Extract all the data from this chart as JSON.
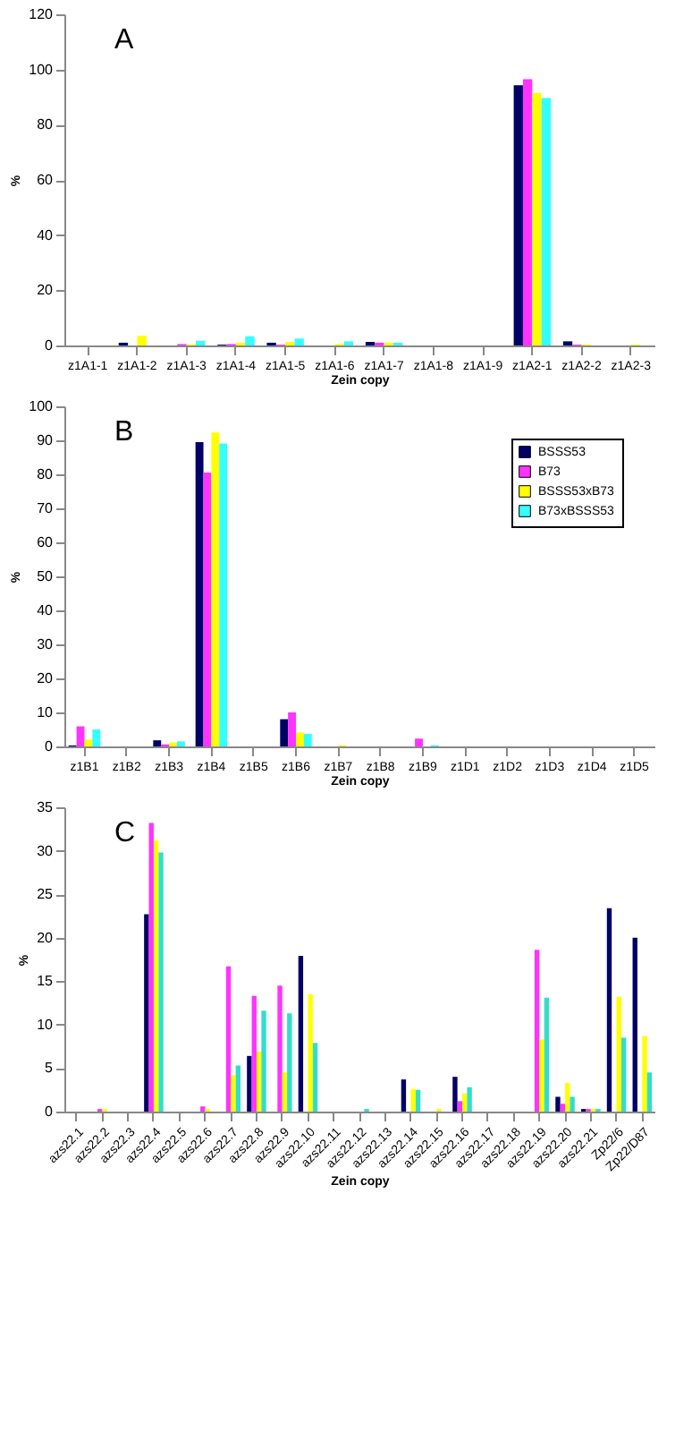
{
  "chart_data": [
    {
      "type": "bar",
      "xlabel": "Zein copy",
      "ylabel": "%",
      "annotations": [
        "A"
      ],
      "legend": false,
      "grid": false,
      "categories": [
        "z1A1-1",
        "z1A1-2",
        "z1A1-3",
        "z1A1-4",
        "z1A1-5",
        "z1A1-6",
        "z1A1-7",
        "z1A1-8",
        "z1A1-9",
        "z1A2-1",
        "z1A2-2",
        "z1A2-3"
      ],
      "ylim": [
        0,
        120
      ],
      "yticks": [
        0,
        20,
        40,
        60,
        80,
        100,
        120
      ],
      "series": [
        {
          "color": "#000066",
          "values": [
            0,
            1,
            0,
            0.3,
            1,
            0,
            1.3,
            0,
            0,
            94.3,
            1.5,
            0
          ]
        },
        {
          "color": "#ff33ff",
          "values": [
            0,
            0,
            0.5,
            0.5,
            0.3,
            0,
            1,
            0,
            0,
            96.5,
            0.3,
            0
          ]
        },
        {
          "color": "#ffff00",
          "values": [
            0,
            3.5,
            0.3,
            1,
            1.3,
            0.5,
            1,
            0,
            0,
            91.5,
            0.3,
            0.3
          ]
        },
        {
          "color": "#33ffff",
          "values": [
            0,
            0,
            1.7,
            3.3,
            2.5,
            1.5,
            1,
            0,
            0,
            89.7,
            0,
            0
          ]
        }
      ]
    },
    {
      "type": "bar",
      "xlabel": "Zein copy",
      "ylabel": "%",
      "annotations": [
        "B"
      ],
      "legend": "top right",
      "grid": false,
      "categories": [
        "z1B1",
        "z1B2",
        "z1B3",
        "z1B4",
        "z1B5",
        "z1B6",
        "z1B7",
        "z1B8",
        "z1B9",
        "z1D1",
        "z1D2",
        "z1D3",
        "z1D4",
        "z1D5"
      ],
      "ylim": [
        0,
        100
      ],
      "yticks": [
        0,
        10,
        20,
        30,
        40,
        50,
        60,
        70,
        80,
        90,
        100
      ],
      "series": [
        {
          "name": "BSSS53",
          "color": "#000066",
          "values": [
            0.3,
            0,
            1.8,
            89.5,
            0,
            8,
            0,
            0,
            0,
            0,
            0,
            0,
            0,
            0
          ]
        },
        {
          "name": "B73",
          "color": "#ff33ff",
          "values": [
            5.9,
            0,
            0.6,
            80.5,
            0,
            10,
            0,
            0,
            2.3,
            0,
            0,
            0,
            0,
            0
          ]
        },
        {
          "name": "BSSS53xB73",
          "color": "#ffff00",
          "values": [
            2,
            0,
            1.1,
            92.3,
            0,
            4.1,
            0.3,
            0,
            0,
            0,
            0,
            0,
            0,
            0
          ]
        },
        {
          "name": "B73xBSSS53",
          "color": "#33ffff",
          "values": [
            5,
            0,
            1.5,
            89.1,
            0,
            3.7,
            0,
            0,
            0.3,
            0,
            0,
            0,
            0,
            0
          ]
        }
      ]
    },
    {
      "type": "bar",
      "xlabel": "Zein copy",
      "ylabel": "%",
      "annotations": [
        "C"
      ],
      "legend": false,
      "grid": false,
      "categories": [
        "azs22.1",
        "azs22.2",
        "azs22.3",
        "azs22.4",
        "azs22.5",
        "azs22.6",
        "azs22.7",
        "azs22.8",
        "azs22.9",
        "azs22.10",
        "azs22.11",
        "azs22.12",
        "azs22.13",
        "azs22.14",
        "azs22.15",
        "azs22.16",
        "azs22.17",
        "azs22.18",
        "azs22.19",
        "azs22.20",
        "azs22.21",
        "Zp22/6",
        "Zp22/D87"
      ],
      "ylim": [
        0,
        35
      ],
      "yticks": [
        0,
        5,
        10,
        15,
        20,
        25,
        30,
        35
      ],
      "series": [
        {
          "color": "#000066",
          "values": [
            0,
            0,
            0,
            22.7,
            0,
            0,
            0,
            6.4,
            0,
            17.9,
            0,
            0,
            0,
            3.7,
            0,
            4,
            0,
            0,
            0,
            1.7,
            0.3,
            23.4,
            20
          ]
        },
        {
          "color": "#ff33ff",
          "values": [
            0,
            0.3,
            0,
            33.2,
            0,
            0.6,
            16.7,
            13.3,
            14.5,
            0,
            0,
            0,
            0,
            0,
            0,
            1.2,
            0,
            0,
            18.6,
            0.9,
            0.3,
            0,
            0
          ]
        },
        {
          "color": "#ffff00",
          "values": [
            0,
            0.3,
            0,
            31.2,
            0,
            0.3,
            4.2,
            6.9,
            4.5,
            13.5,
            0,
            0,
            0,
            2.6,
            0.3,
            2.1,
            0,
            0,
            8.3,
            3.3,
            0.3,
            13.2,
            8.7
          ]
        },
        {
          "color": "#33ddcc",
          "values": [
            0,
            0,
            0,
            29.8,
            0,
            0,
            5.3,
            11.6,
            11.3,
            7.9,
            0,
            0.3,
            0,
            2.5,
            0,
            2.8,
            0,
            0,
            13.1,
            1.7,
            0.3,
            8.5,
            4.5
          ]
        }
      ]
    }
  ]
}
